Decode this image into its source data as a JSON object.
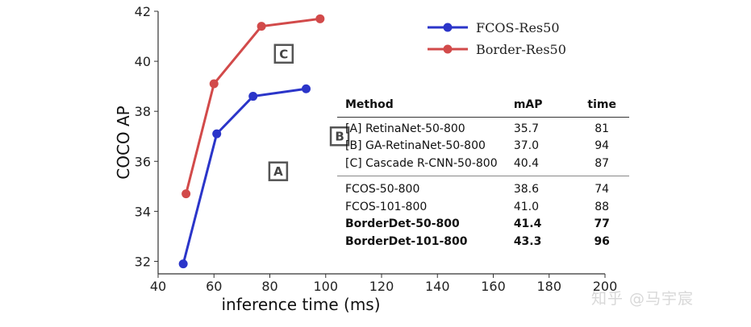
{
  "chart_data": {
    "type": "line",
    "xlabel": "inference time (ms)",
    "ylabel": "COCO AP",
    "xlim": [
      40,
      200
    ],
    "ylim": [
      31.5,
      42
    ],
    "xticks": [
      40,
      60,
      80,
      100,
      120,
      140,
      160,
      180,
      200
    ],
    "yticks": [
      32,
      34,
      36,
      38,
      40,
      42
    ],
    "grid": false,
    "legend_position": "top-right",
    "series": [
      {
        "name": "FCOS-Res50",
        "color": "#2b35c9",
        "points": [
          {
            "x": 49,
            "y": 31.9
          },
          {
            "x": 61,
            "y": 37.1
          },
          {
            "x": 74,
            "y": 38.6
          },
          {
            "x": 93,
            "y": 38.9
          }
        ]
      },
      {
        "name": "Border-Res50",
        "color": "#d24a4a",
        "points": [
          {
            "x": 50,
            "y": 34.7
          },
          {
            "x": 60,
            "y": 39.1
          },
          {
            "x": 77,
            "y": 41.4
          },
          {
            "x": 98,
            "y": 41.7
          }
        ]
      }
    ],
    "annotations": [
      {
        "label": "A",
        "x": 83,
        "y": 35.6
      },
      {
        "label": "B",
        "x": 105,
        "y": 37.0
      },
      {
        "label": "C",
        "x": 85,
        "y": 40.3
      }
    ]
  },
  "table": {
    "headers": {
      "method": "Method",
      "map": "mAP",
      "time": "time"
    },
    "rows_a": [
      {
        "method": "[A] RetinaNet-50-800",
        "map": "35.7",
        "time": "81"
      },
      {
        "method": "[B] GA-RetinaNet-50-800",
        "map": "37.0",
        "time": "94"
      },
      {
        "method": "[C] Cascade R-CNN-50-800",
        "map": "40.4",
        "time": "87"
      }
    ],
    "rows_b": [
      {
        "method": "FCOS-50-800",
        "map": "38.6",
        "time": "74"
      },
      {
        "method": "FCOS-101-800",
        "map": "41.0",
        "time": "88"
      },
      {
        "method": "BorderDet-50-800",
        "map": "41.4",
        "time": "77"
      },
      {
        "method": "BorderDet-101-800",
        "map": "43.3",
        "time": "96"
      }
    ]
  },
  "watermark": "知乎 @马宇宸"
}
